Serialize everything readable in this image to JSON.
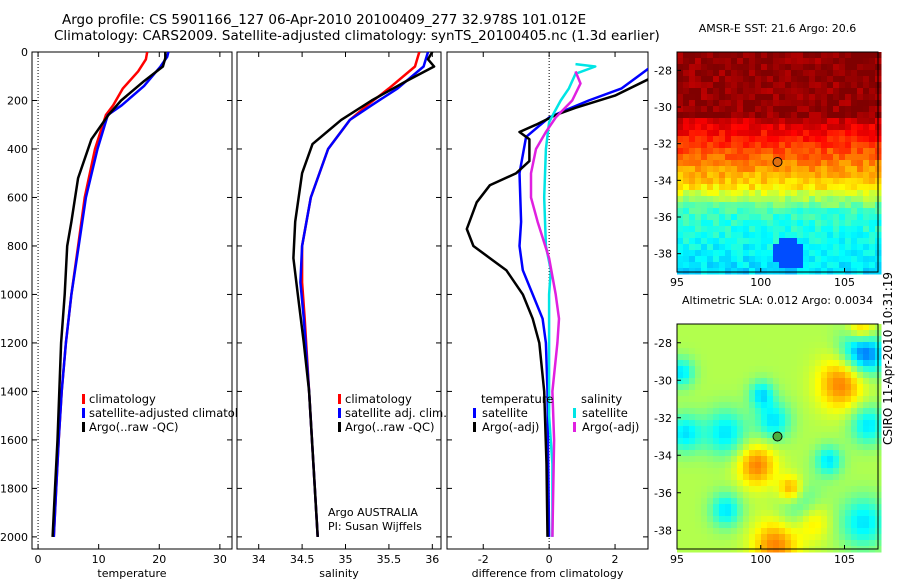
{
  "header": {
    "line1": "Argo profile: CS 5901166_127 06-Apr-2010 20100409_277 32.978S 101.012E",
    "line2": "Climatology: CARS2009. Satellite-adjusted climatology: synTS_20100405.nc (1.3d earlier)"
  },
  "side_label": "CSIRO 11-Apr-2010 10:31:19",
  "chart_data": [
    {
      "type": "line",
      "xlabel": "temperature",
      "ylabel": "",
      "xlim": [
        -1,
        32
      ],
      "ylim": [
        2050,
        0
      ],
      "xticks": [
        0,
        10,
        20,
        30
      ],
      "yticks": [
        0,
        200,
        400,
        600,
        800,
        1000,
        1200,
        1400,
        1600,
        1800,
        2000
      ],
      "legend": {
        "position": "lower-middle",
        "entries": [
          "climatology",
          "satellite-adjusted climatolog",
          "Argo(..raw -QC)"
        ]
      },
      "series": [
        {
          "name": "climatology",
          "color": "#ff0000",
          "points": [
            [
              18,
              0
            ],
            [
              17.8,
              30
            ],
            [
              16.5,
              80
            ],
            [
              14,
              150
            ],
            [
              12.4,
              220
            ],
            [
              11.2,
              260
            ],
            [
              9.4,
              400
            ],
            [
              7.7,
              600
            ],
            [
              6.6,
              800
            ],
            [
              5.5,
              1000
            ],
            [
              4.6,
              1200
            ],
            [
              3.9,
              1400
            ],
            [
              3.4,
              1600
            ],
            [
              3,
              1800
            ],
            [
              2.6,
              2000
            ]
          ]
        },
        {
          "name": "satellite-adjusted climatolog",
          "color": "#0000ff",
          "points": [
            [
              21.5,
              0
            ],
            [
              21.3,
              20
            ],
            [
              20.2,
              60
            ],
            [
              17.5,
              140
            ],
            [
              13.8,
              220
            ],
            [
              11.5,
              260
            ],
            [
              9.8,
              400
            ],
            [
              7.9,
              600
            ],
            [
              6.7,
              800
            ],
            [
              5.5,
              1000
            ],
            [
              4.6,
              1200
            ],
            [
              3.9,
              1400
            ],
            [
              3.4,
              1600
            ],
            [
              3,
              1800
            ],
            [
              2.6,
              2000
            ]
          ]
        },
        {
          "name": "Argo(..raw -QC)",
          "color": "#000000",
          "points": [
            [
              21,
              0
            ],
            [
              21,
              25
            ],
            [
              20.6,
              60
            ],
            [
              17.5,
              120
            ],
            [
              13.7,
              200
            ],
            [
              11.6,
              260
            ],
            [
              8.8,
              360
            ],
            [
              6.6,
              520
            ],
            [
              5.5,
              700
            ],
            [
              4.8,
              800
            ],
            [
              4.4,
              1000
            ],
            [
              3.8,
              1200
            ],
            [
              3.5,
              1400
            ],
            [
              3.2,
              1600
            ],
            [
              2.8,
              1800
            ],
            [
              2.4,
              2000
            ]
          ]
        }
      ]
    },
    {
      "type": "line",
      "xlabel": "salinity",
      "xlim": [
        33.75,
        36.1
      ],
      "ylim": [
        2050,
        0
      ],
      "xticks": [
        34,
        34.5,
        35,
        35.5,
        36
      ],
      "yticks": [
        0,
        200,
        400,
        600,
        800,
        1000,
        1200,
        1400,
        1600,
        1800,
        2000
      ],
      "legend": {
        "position": "lower-right",
        "entries": [
          "climatology",
          "satellite adj. clim.",
          "Argo(..raw -QC)"
        ]
      },
      "annotation": [
        "Argo AUSTRALIA",
        "PI: Susan Wijffels"
      ],
      "series": [
        {
          "name": "climatology",
          "color": "#ff0000",
          "points": [
            [
              35.85,
              0
            ],
            [
              35.8,
              60
            ],
            [
              35.5,
              150
            ],
            [
              35.25,
              220
            ],
            [
              35.05,
              280
            ],
            [
              34.8,
              400
            ],
            [
              34.6,
              600
            ],
            [
              34.5,
              800
            ],
            [
              34.5,
              950
            ],
            [
              34.53,
              1100
            ],
            [
              34.58,
              1400
            ],
            [
              34.63,
              1700
            ],
            [
              34.68,
              2000
            ]
          ]
        },
        {
          "name": "satellite adj. clim.",
          "color": "#0000ff",
          "points": [
            [
              35.95,
              0
            ],
            [
              35.9,
              60
            ],
            [
              35.6,
              150
            ],
            [
              35.3,
              220
            ],
            [
              35.05,
              280
            ],
            [
              34.8,
              400
            ],
            [
              34.6,
              600
            ],
            [
              34.5,
              800
            ],
            [
              34.48,
              950
            ],
            [
              34.52,
              1100
            ],
            [
              34.58,
              1400
            ],
            [
              34.63,
              1700
            ],
            [
              34.68,
              2000
            ]
          ]
        },
        {
          "name": "Argo(..raw -QC)",
          "color": "#000000",
          "points": [
            [
              36,
              0
            ],
            [
              35.95,
              30
            ],
            [
              36.02,
              60
            ],
            [
              35.7,
              120
            ],
            [
              35.3,
              200
            ],
            [
              34.95,
              280
            ],
            [
              34.62,
              380
            ],
            [
              34.5,
              500
            ],
            [
              34.42,
              700
            ],
            [
              34.4,
              850
            ],
            [
              34.45,
              1000
            ],
            [
              34.52,
              1200
            ],
            [
              34.58,
              1400
            ],
            [
              34.63,
              1700
            ],
            [
              34.68,
              2000
            ]
          ]
        }
      ]
    },
    {
      "type": "line",
      "xlabel": "difference from climatology",
      "xlim": [
        -3.1,
        3.0
      ],
      "ylim": [
        2050,
        0
      ],
      "xticks": [
        -2,
        0,
        2
      ],
      "yticks": [
        0,
        200,
        400,
        600,
        800,
        1000,
        1200,
        1400,
        1600,
        1800,
        2000
      ],
      "legend": {
        "position": "lower",
        "groups": [
          {
            "title": "temperature",
            "entries": [
              "satellite",
              "Argo(-adj)"
            ]
          },
          {
            "title": "salinity",
            "entries": [
              "satellite",
              "Argo(-adj)"
            ]
          }
        ]
      },
      "series": [
        {
          "name": "temperature satellite",
          "color": "#0000ff",
          "points": [
            [
              3.2,
              50
            ],
            [
              2.2,
              150
            ],
            [
              1.2,
              200
            ],
            [
              0.5,
              240
            ],
            [
              0,
              270
            ],
            [
              -0.7,
              350
            ],
            [
              -0.9,
              500
            ],
            [
              -0.85,
              700
            ],
            [
              -0.9,
              800
            ],
            [
              -0.8,
              900
            ],
            [
              -0.5,
              1000
            ],
            [
              -0.2,
              1100
            ],
            [
              -0.1,
              1200
            ],
            [
              -0.05,
              1400
            ],
            [
              -0.03,
              1700
            ],
            [
              0,
              2000
            ]
          ]
        },
        {
          "name": "temperature Argo(-adj)",
          "color": "#000000",
          "points": [
            [
              3.2,
              100
            ],
            [
              2,
              180
            ],
            [
              0.8,
              230
            ],
            [
              0.2,
              260
            ],
            [
              -0.4,
              300
            ],
            [
              -0.9,
              330
            ],
            [
              -0.6,
              360
            ],
            [
              -0.6,
              450
            ],
            [
              -1,
              500
            ],
            [
              -1.8,
              550
            ],
            [
              -2.2,
              620
            ],
            [
              -2.5,
              730
            ],
            [
              -2.3,
              800
            ],
            [
              -1.8,
              850
            ],
            [
              -1.3,
              900
            ],
            [
              -0.8,
              1000
            ],
            [
              -0.5,
              1100
            ],
            [
              -0.3,
              1200
            ],
            [
              -0.15,
              1400
            ],
            [
              -0.08,
              1700
            ],
            [
              -0.05,
              2000
            ]
          ]
        },
        {
          "name": "salinity satellite",
          "color": "#00e5e5",
          "points": [
            [
              0.8,
              50
            ],
            [
              1.4,
              60
            ],
            [
              0.8,
              90
            ],
            [
              0.6,
              150
            ],
            [
              0.35,
              200
            ],
            [
              0.15,
              250
            ],
            [
              0,
              290
            ],
            [
              -0.1,
              400
            ],
            [
              -0.15,
              600
            ],
            [
              -0.1,
              800
            ],
            [
              0.05,
              900
            ],
            [
              0,
              1000
            ],
            [
              0,
              1200
            ],
            [
              0,
              1500
            ],
            [
              0.1,
              1700
            ],
            [
              0.1,
              2000
            ]
          ]
        },
        {
          "name": "salinity Argo(-adj)",
          "color": "#e020e0",
          "points": [
            [
              0.8,
              80
            ],
            [
              0.95,
              130
            ],
            [
              0.7,
              200
            ],
            [
              0.2,
              270
            ],
            [
              -0.1,
              330
            ],
            [
              -0.4,
              400
            ],
            [
              -0.55,
              500
            ],
            [
              -0.55,
              600
            ],
            [
              -0.35,
              700
            ],
            [
              0,
              850
            ],
            [
              0.2,
              1000
            ],
            [
              0.3,
              1100
            ],
            [
              0.25,
              1200
            ],
            [
              0.1,
              1400
            ],
            [
              0.15,
              1600
            ],
            [
              0.1,
              2000
            ]
          ]
        }
      ]
    },
    {
      "type": "heatmap",
      "title": "AMSR-E SST: 21.6 Argo: 20.6",
      "xlim": [
        95,
        107
      ],
      "ylim": [
        -39,
        -27
      ],
      "xticks": [
        95,
        100,
        105
      ],
      "yticks": [
        -28,
        -30,
        -32,
        -34,
        -36,
        -38
      ],
      "marker": {
        "lon": 101.0,
        "lat": -33.0,
        "color": "#e07010"
      }
    },
    {
      "type": "heatmap",
      "title": "Altimetric SLA: 0.012 Argo: 0.0034",
      "xlim": [
        95,
        107
      ],
      "ylim": [
        -39,
        -27
      ],
      "xticks": [
        95,
        100,
        105
      ],
      "yticks": [
        -28,
        -30,
        -32,
        -34,
        -36,
        -38
      ],
      "marker": {
        "lon": 101.0,
        "lat": -33.0,
        "color": "#4caf3f"
      }
    }
  ]
}
